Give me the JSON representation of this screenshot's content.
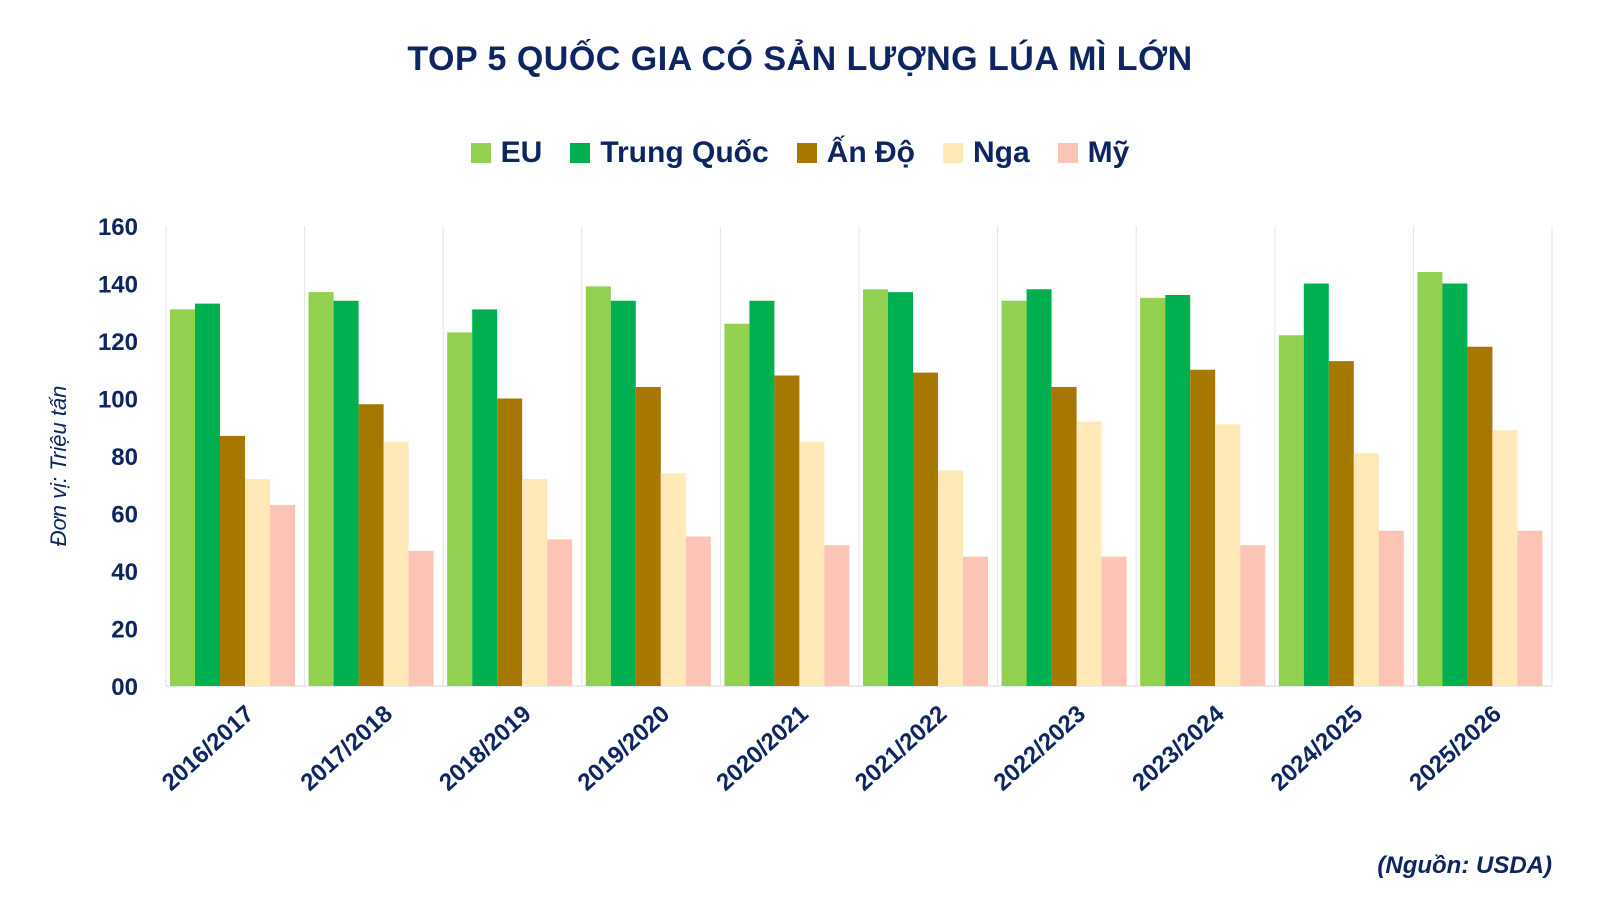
{
  "chart_data": {
    "type": "bar",
    "title": "TOP 5 QUỐC GIA CÓ SẢN LƯỢNG LÚA MÌ LỚN",
    "ylabel": "Đơn vị: Triệu tấn",
    "xlabel": "",
    "ylim": [
      0,
      160
    ],
    "yticks": [
      "00",
      "20",
      "40",
      "60",
      "80",
      "100",
      "120",
      "140",
      "160"
    ],
    "yticks_values": [
      0,
      20,
      40,
      60,
      80,
      100,
      120,
      140,
      160
    ],
    "grid": "vertical separators between categories",
    "legend_position": "top",
    "categories": [
      "2016/2017",
      "2017/2018",
      "2018/2019",
      "2019/2020",
      "2020/2021",
      "2021/2022",
      "2022/2023",
      "2023/2024",
      "2024/2025",
      "2025/2026"
    ],
    "series": [
      {
        "name": "EU",
        "color": "#92d050",
        "values": [
          131,
          137,
          123,
          139,
          126,
          138,
          134,
          135,
          122,
          144
        ]
      },
      {
        "name": "Trung Quốc",
        "color": "#00b050",
        "values": [
          133,
          134,
          131,
          134,
          134,
          137,
          138,
          136,
          140,
          140
        ]
      },
      {
        "name": "Ấn Độ",
        "color": "#a67800",
        "values": [
          87,
          98,
          100,
          104,
          108,
          109,
          104,
          110,
          113,
          118
        ]
      },
      {
        "name": "Nga",
        "color": "#ffe9b8",
        "values": [
          72,
          85,
          72,
          74,
          85,
          75,
          92,
          91,
          81,
          89
        ]
      },
      {
        "name": "Mỹ",
        "color": "#fcc4b4",
        "values": [
          63,
          47,
          51,
          52,
          49,
          45,
          45,
          49,
          54,
          54
        ]
      }
    ]
  },
  "source_note": "(Nguồn: USDA)"
}
